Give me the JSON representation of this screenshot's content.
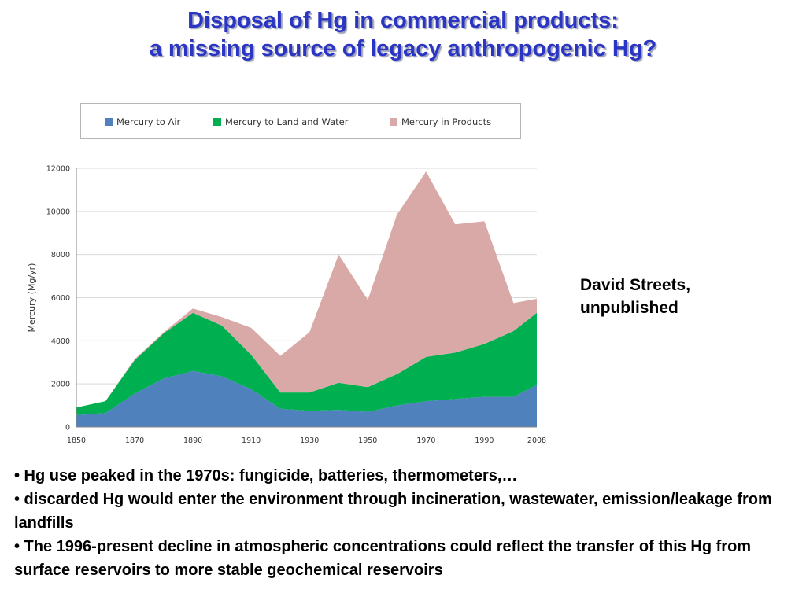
{
  "title": {
    "line1": "Disposal of Hg in commercial products:",
    "line2": "a missing source of legacy anthropogenic Hg?"
  },
  "credit": {
    "line1": "David Streets,",
    "line2": "unpublished"
  },
  "bullets": [
    "• Hg use peaked in the 1970s: fungicide, batteries, thermometers,…",
    "• discarded Hg would enter the environment through incineration, wastewater, emission/leakage from landfills",
    "• The 1996-present decline in atmospheric concentrations could reflect the transfer of this Hg from surface reservoirs to more stable geochemical reservoirs"
  ],
  "colors": {
    "title": "#2b35c4",
    "air": "#4f81bd",
    "land_water": "#00b050",
    "products": "#d9a9a8",
    "grid": "#d9d9d9"
  },
  "chart_data": {
    "type": "area",
    "stacked": true,
    "ylabel": "Mercury (Mg/yr)",
    "xlabel": "",
    "ylim": [
      0,
      12000
    ],
    "yticks": [
      0,
      2000,
      4000,
      6000,
      8000,
      10000,
      12000
    ],
    "xticks": [
      "1850",
      "1870",
      "1890",
      "1910",
      "1930",
      "1950",
      "1970",
      "1990",
      "2008"
    ],
    "grid": "horizontal",
    "legend_position": "top",
    "x": [
      1850,
      1860,
      1870,
      1880,
      1890,
      1900,
      1910,
      1920,
      1930,
      1940,
      1950,
      1960,
      1970,
      1980,
      1990,
      2000,
      2008
    ],
    "series": [
      {
        "name": "Mercury to Air",
        "color": "#4f81bd",
        "values": [
          550,
          650,
          1550,
          2250,
          2600,
          2350,
          1750,
          850,
          750,
          800,
          700,
          1000,
          1200,
          1300,
          1400,
          1400,
          1950
        ]
      },
      {
        "name": "Mercury to Land and Water",
        "color": "#00b050",
        "values": [
          350,
          550,
          1550,
          2100,
          2700,
          2350,
          1600,
          750,
          850,
          1250,
          1150,
          1450,
          2050,
          2150,
          2450,
          3050,
          3350
        ]
      },
      {
        "name": "Mercury in Products",
        "color": "#d9a9a8",
        "values": [
          0,
          0,
          50,
          50,
          200,
          400,
          1250,
          1700,
          2800,
          5950,
          4050,
          7400,
          8600,
          5950,
          5700,
          1300,
          650
        ]
      }
    ]
  }
}
